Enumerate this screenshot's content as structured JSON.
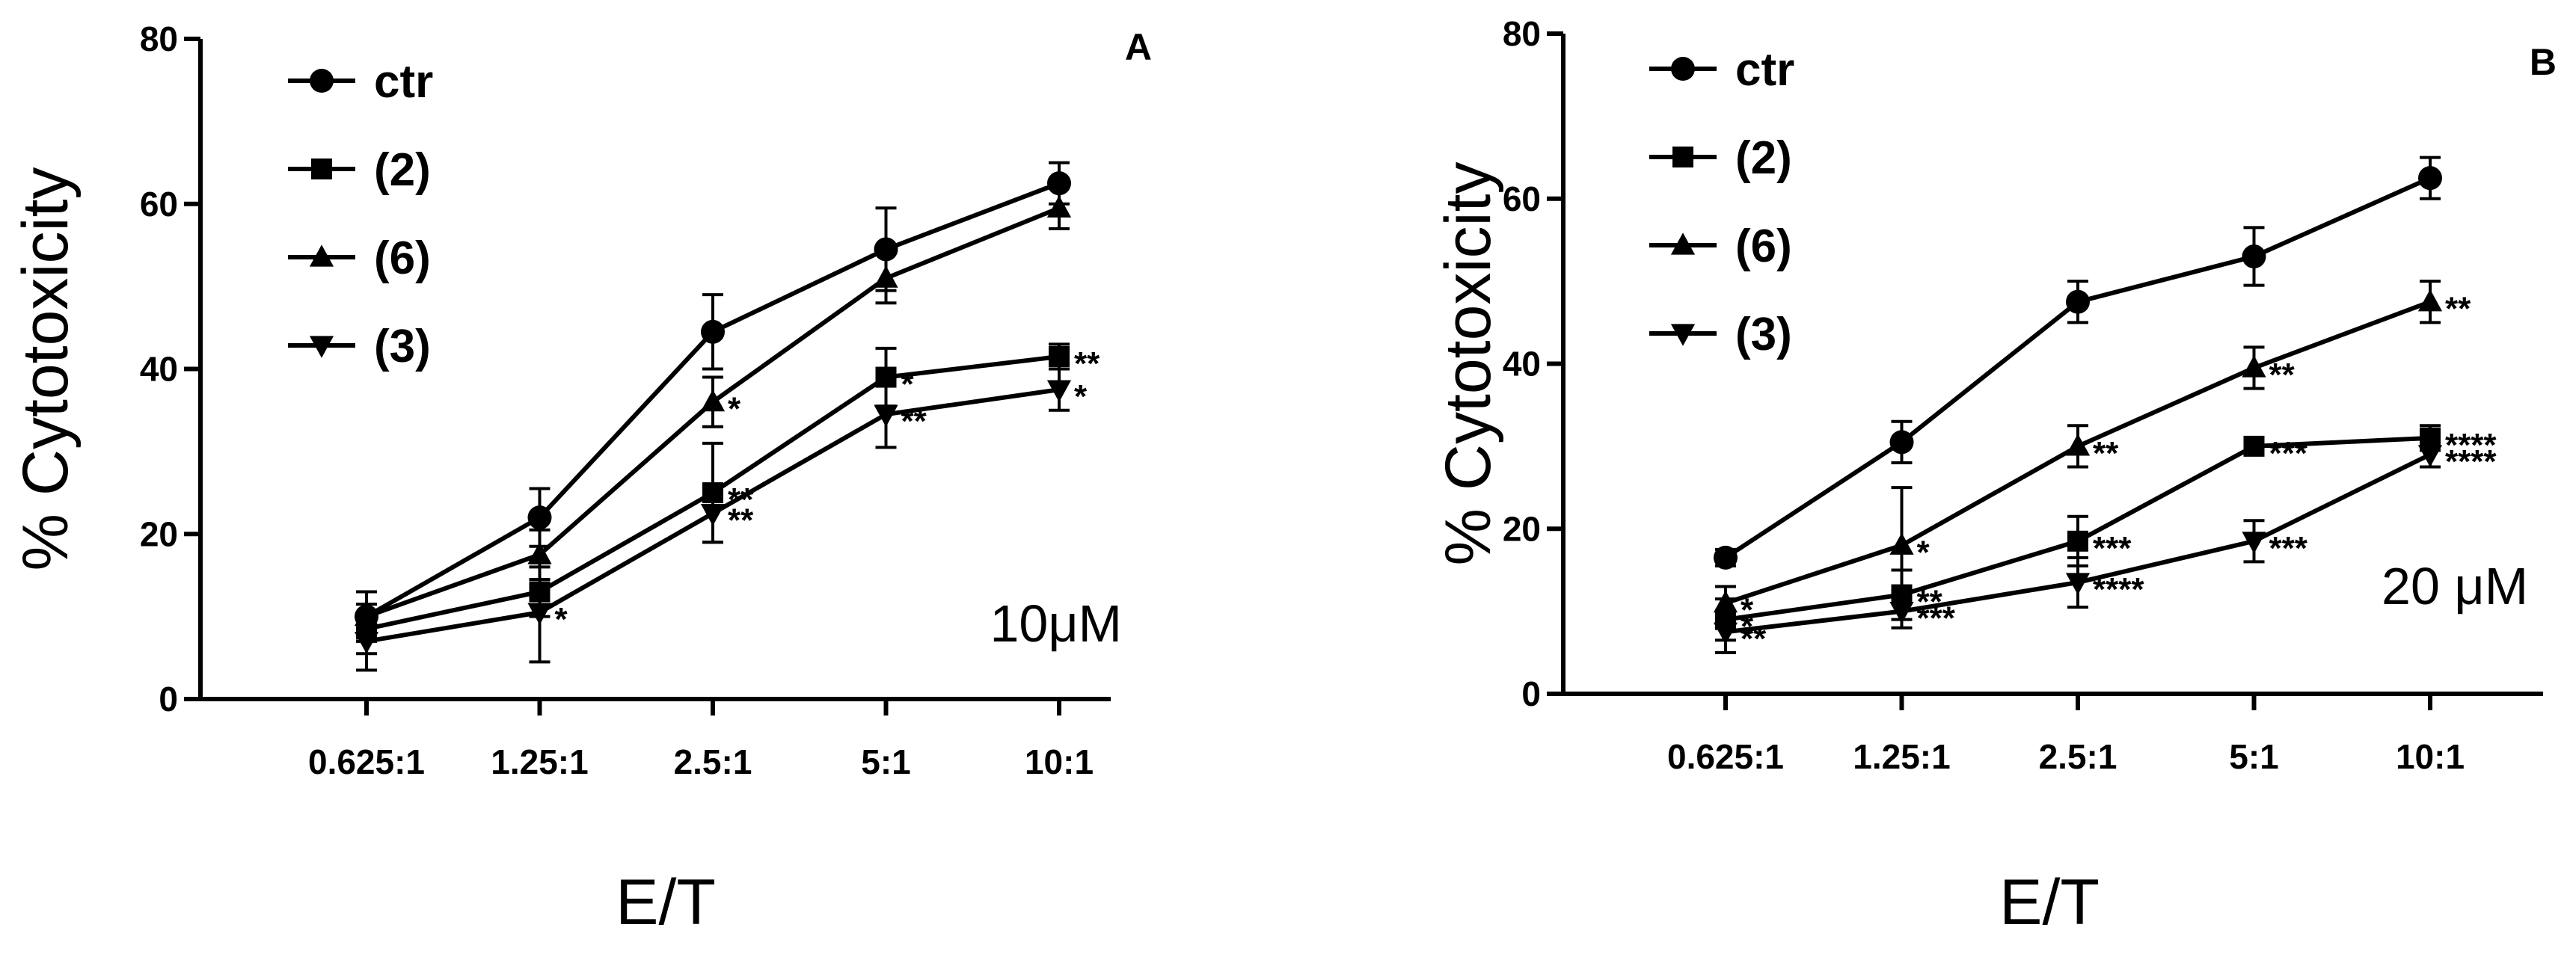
{
  "chart_data": [
    {
      "type": "line",
      "panel": "A",
      "concentration_label": "10μM",
      "xlabel": "E/T",
      "ylabel": "% Cytotoxicity",
      "ylim": [
        0,
        80
      ],
      "yticks": [
        "0",
        "20",
        "40",
        "60",
        "80"
      ],
      "categories": [
        "0.625:1",
        "1.25:1",
        "2.5:1",
        "5:1",
        "10:1"
      ],
      "legend_position": "top-left",
      "series": [
        {
          "name": "ctr",
          "marker": "circle",
          "values": [
            10,
            22,
            44.5,
            54.5,
            62.5
          ],
          "errors": [
            3,
            3.5,
            4.5,
            5,
            2.5
          ],
          "significance": [
            "",
            "",
            "",
            "",
            ""
          ]
        },
        {
          "name": "(2)",
          "marker": "square",
          "values": [
            8.5,
            13,
            25,
            39,
            41.5
          ],
          "errors": [
            3,
            3,
            6,
            3.5,
            1.5
          ],
          "significance": [
            "",
            "",
            "**",
            "*",
            "**"
          ]
        },
        {
          "name": "(6)",
          "marker": "triangle-up",
          "values": [
            10,
            17.5,
            36,
            51,
            59.5
          ],
          "errors": [
            3,
            3,
            3,
            3,
            2.5
          ],
          "significance": [
            "",
            "",
            "*",
            "",
            ""
          ]
        },
        {
          "name": "(3)",
          "marker": "triangle-down",
          "values": [
            7,
            10.5,
            22.5,
            34.5,
            37.5
          ],
          "errors": [
            3.5,
            6,
            3.5,
            4,
            2.5
          ],
          "significance": [
            "",
            "*",
            "**",
            "**",
            "*"
          ]
        }
      ]
    },
    {
      "type": "line",
      "panel": "B",
      "concentration_label": "20 μM",
      "xlabel": "E/T",
      "ylabel": "% Cytotoxicity",
      "ylim": [
        0,
        80
      ],
      "yticks": [
        "0",
        "20",
        "40",
        "60",
        "80"
      ],
      "categories": [
        "0.625:1",
        "1.25:1",
        "2.5:1",
        "5:1",
        "10:1"
      ],
      "legend_position": "top-left",
      "series": [
        {
          "name": "ctr",
          "marker": "circle",
          "values": [
            16.5,
            30.5,
            47.5,
            53,
            62.5
          ],
          "errors": [
            1,
            2.5,
            2.5,
            3.5,
            2.5
          ],
          "significance": [
            "",
            "",
            "",
            "",
            ""
          ]
        },
        {
          "name": "(2)",
          "marker": "square",
          "values": [
            9,
            12,
            18.5,
            30,
            31
          ],
          "errors": [
            2.5,
            3,
            3,
            1,
            1.5
          ],
          "significance": [
            "*",
            "**",
            "***",
            "***",
            "****"
          ]
        },
        {
          "name": "(6)",
          "marker": "triangle-up",
          "values": [
            11,
            18,
            30,
            39.5,
            47.5
          ],
          "errors": [
            2,
            7,
            2.5,
            2.5,
            2.5
          ],
          "significance": [
            "*",
            "*",
            "**",
            "**",
            "**"
          ]
        },
        {
          "name": "(3)",
          "marker": "triangle-down",
          "values": [
            7.5,
            10,
            13.5,
            18.5,
            29
          ],
          "errors": [
            2.5,
            2,
            3,
            2.5,
            1.5
          ],
          "significance": [
            "**",
            "***",
            "****",
            "***",
            "****"
          ]
        }
      ]
    }
  ]
}
